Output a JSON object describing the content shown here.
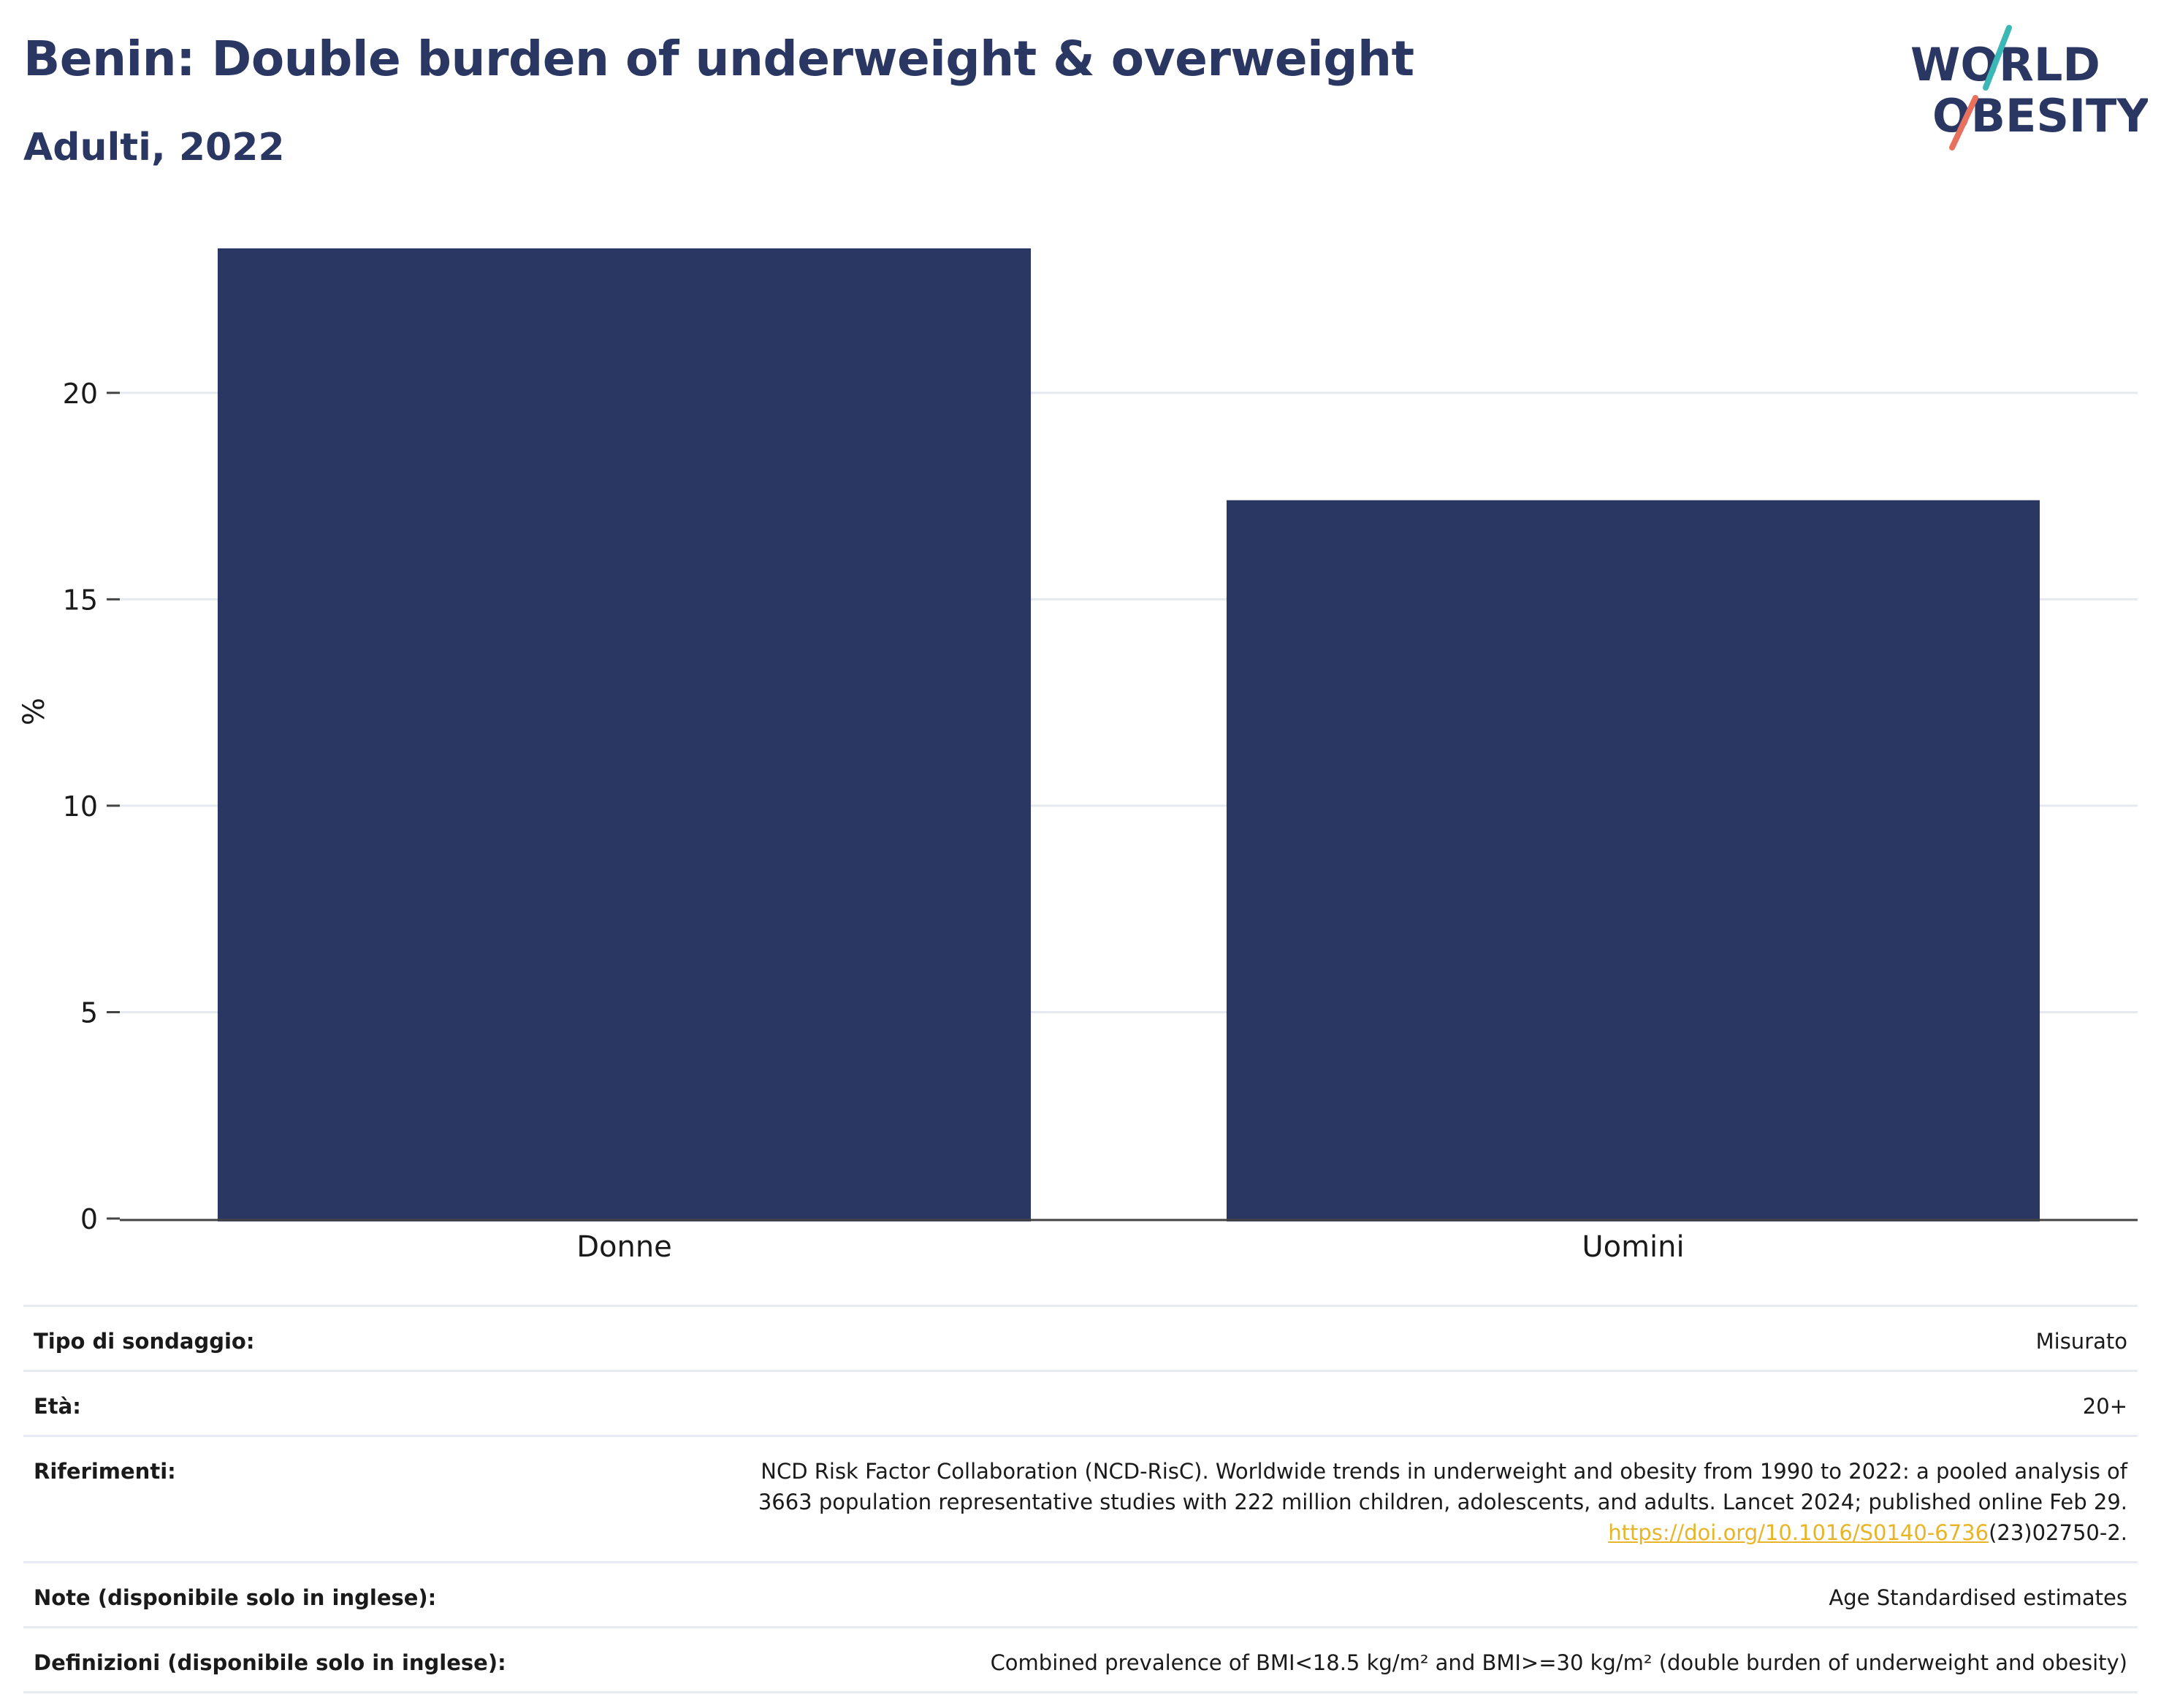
{
  "title": "Benin: Double burden of underweight & overweight",
  "subtitle": "Adulti, 2022",
  "logo": {
    "line1": "WORLD",
    "line2": "OBESITY",
    "accent_teal": "#3bb7b5",
    "accent_coral": "#e8705e",
    "text_color": "#2b3763"
  },
  "chart_data": {
    "type": "bar",
    "categories": [
      "Donne",
      "Uomini"
    ],
    "values": [
      23.5,
      17.4
    ],
    "ylabel": "%",
    "xlabel": "",
    "ylim": [
      0,
      23.5
    ],
    "yticks": [
      0,
      5,
      10,
      15,
      20
    ],
    "bar_color": "#2b3763",
    "grid": true,
    "legend": "none"
  },
  "info": {
    "survey_type": {
      "label": "Tipo di sondaggio:",
      "value": "Misurato"
    },
    "age": {
      "label": "Età:",
      "value": "20+"
    },
    "references": {
      "label": "Riferimenti:",
      "line1": "NCD Risk Factor Collaboration (NCD-RisC). Worldwide trends in underweight and obesity from 1990 to 2022: a pooled analysis of",
      "line2": "3663 population representative studies with 222 million children, adolescents, and adults. Lancet 2024; published online Feb 29.",
      "link": "https://doi.org/10.1016/S0140-6736",
      "link_suffix": "(23)02750-2."
    },
    "notes": {
      "label": "Note (disponibile solo in inglese):",
      "value": "Age Standardised estimates"
    },
    "definitions": {
      "label": "Definizioni (disponibile solo in inglese):",
      "value": "Combined prevalence of BMI<18.5 kg/m² and BMI>=30 kg/m² (double burden of underweight and obesity)"
    }
  }
}
